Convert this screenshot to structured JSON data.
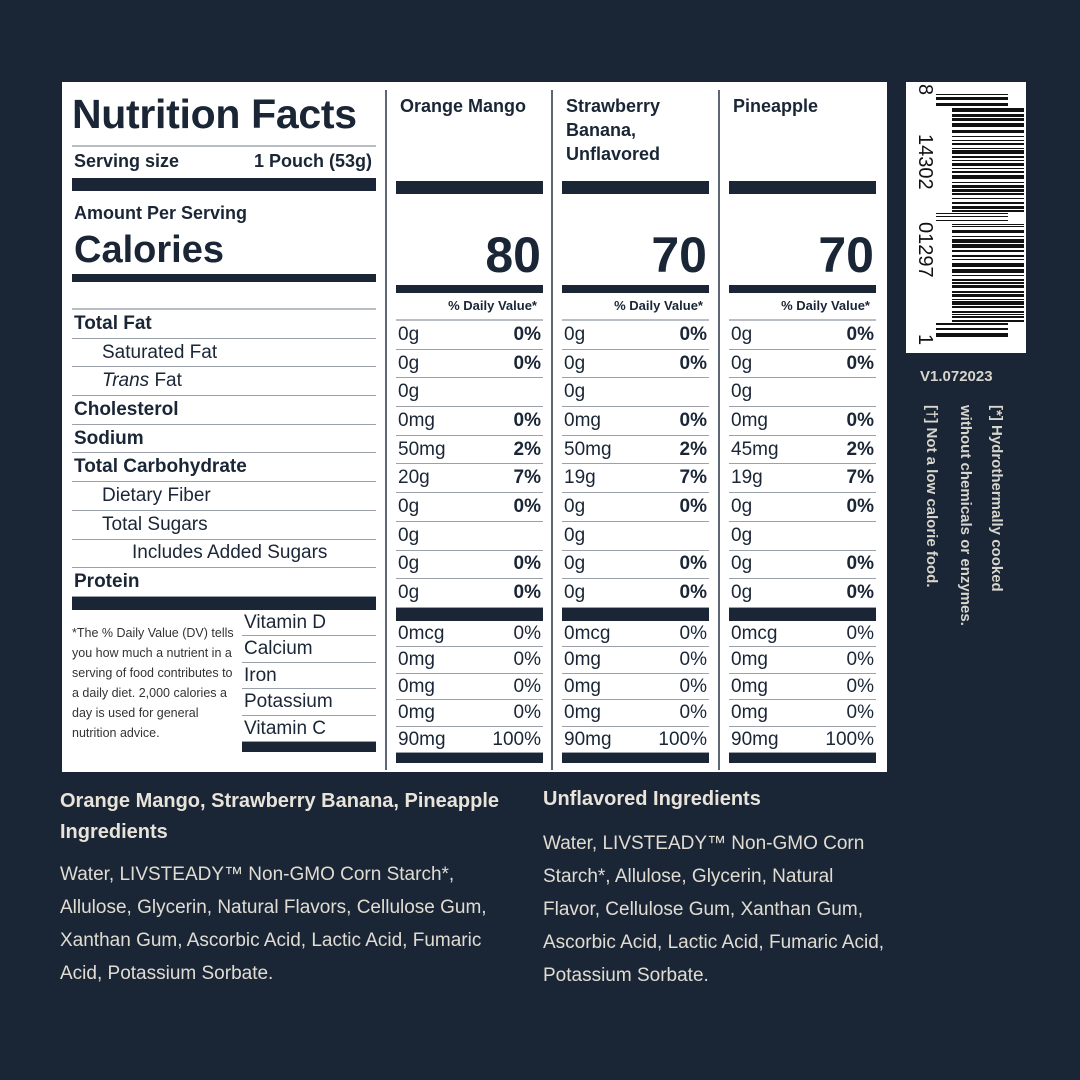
{
  "label": {
    "title": "Nutrition Facts",
    "serving_label": "Serving size",
    "serving_value": "1 Pouch (53g)",
    "amount_per_serving": "Amount Per Serving",
    "calories_label": "Calories",
    "daily_value_header": "% Daily Value*",
    "nutrients": [
      "Total Fat",
      "Saturated Fat",
      "Trans Fat",
      "Cholesterol",
      "Sodium",
      "Total Carbohydrate",
      "Dietary Fiber",
      "Total Sugars",
      "Includes Added Sugars",
      "Protein"
    ],
    "vitamins": [
      "Vitamin D",
      "Calcium",
      "Iron",
      "Potassium",
      "Vitamin C"
    ],
    "footnote": "*The % Daily Value (DV) tells you how much a nutrient in a serving of food contributes to a daily diet. 2,000 calories a day is used for general nutrition advice.",
    "columns": [
      {
        "name": "Orange Mango",
        "calories": "80",
        "rows": [
          [
            "0g",
            "0%"
          ],
          [
            "0g",
            "0%"
          ],
          [
            "0g",
            ""
          ],
          [
            "0mg",
            "0%"
          ],
          [
            "50mg",
            "2%"
          ],
          [
            "20g",
            "7%"
          ],
          [
            "0g",
            "0%"
          ],
          [
            "0g",
            ""
          ],
          [
            "0g",
            "0%"
          ],
          [
            "0g",
            "0%"
          ]
        ],
        "vitamins": [
          [
            "0mcg",
            "0%"
          ],
          [
            "0mg",
            "0%"
          ],
          [
            "0mg",
            "0%"
          ],
          [
            "0mg",
            "0%"
          ],
          [
            "90mg",
            "100%"
          ]
        ]
      },
      {
        "name": "Strawberry Banana, Unflavored",
        "calories": "70",
        "rows": [
          [
            "0g",
            "0%"
          ],
          [
            "0g",
            "0%"
          ],
          [
            "0g",
            ""
          ],
          [
            "0mg",
            "0%"
          ],
          [
            "50mg",
            "2%"
          ],
          [
            "19g",
            "7%"
          ],
          [
            "0g",
            "0%"
          ],
          [
            "0g",
            ""
          ],
          [
            "0g",
            "0%"
          ],
          [
            "0g",
            "0%"
          ]
        ],
        "vitamins": [
          [
            "0mcg",
            "0%"
          ],
          [
            "0mg",
            "0%"
          ],
          [
            "0mg",
            "0%"
          ],
          [
            "0mg",
            "0%"
          ],
          [
            "90mg",
            "100%"
          ]
        ]
      },
      {
        "name": "Pineapple",
        "calories": "70",
        "rows": [
          [
            "0g",
            "0%"
          ],
          [
            "0g",
            "0%"
          ],
          [
            "0g",
            ""
          ],
          [
            "0mg",
            "0%"
          ],
          [
            "45mg",
            "2%"
          ],
          [
            "19g",
            "7%"
          ],
          [
            "0g",
            "0%"
          ],
          [
            "0g",
            ""
          ],
          [
            "0g",
            "0%"
          ],
          [
            "0g",
            "0%"
          ]
        ],
        "vitamins": [
          [
            "0mcg",
            "0%"
          ],
          [
            "0mg",
            "0%"
          ],
          [
            "0mg",
            "0%"
          ],
          [
            "0mg",
            "0%"
          ],
          [
            "90mg",
            "100%"
          ]
        ]
      }
    ]
  },
  "barcode": {
    "digits": [
      "8",
      "14302",
      "01297",
      "1"
    ]
  },
  "version": "V1.072023",
  "side_notes": [
    "[*] Hydrothermally cooked",
    "without chemicals or enzymes.",
    "[†] Not a low calorie food."
  ],
  "ingredients": [
    {
      "heading": "Orange Mango, Strawberry Banana, Pineapple Ingredients",
      "text": "Water, LIVSTEADY™ Non-GMO Corn Starch*, Allulose, Glycerin, Natural Flavors, Cellulose Gum, Xanthan Gum, Ascorbic Acid, Lactic Acid, Fumaric Acid, Potassium Sorbate."
    },
    {
      "heading": "Unflavored Ingredients",
      "text": "Water, LIVSTEADY™ Non-GMO Corn Starch*, Allulose, Glycerin, Natural Flavor, Cellulose Gum, Xanthan Gum, Ascorbic Acid, Lactic Acid, Fumaric Acid, Potassium Sorbate."
    }
  ],
  "colors": {
    "background": "#1a2636",
    "label": "#ffffff",
    "ink": "#1a2636",
    "ingredient_text": "#e8e4da"
  }
}
